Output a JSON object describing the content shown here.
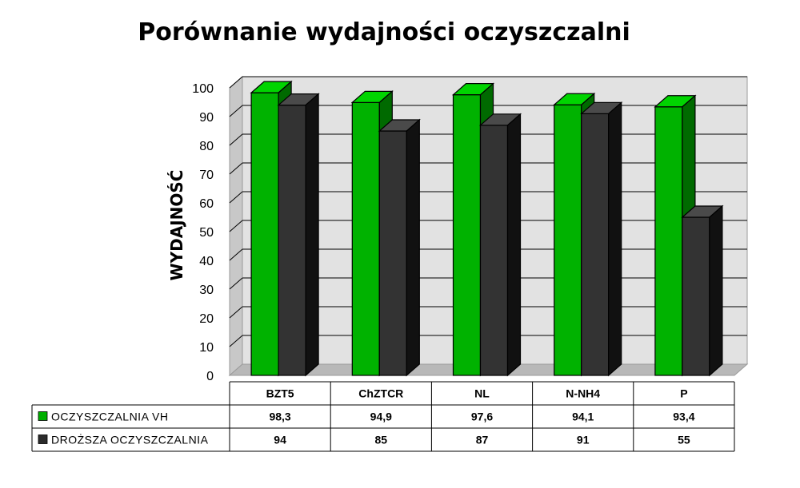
{
  "chart_data": {
    "type": "bar",
    "title": "Porównanie wydajności oczyszczalni",
    "ylabel": "WYDAJNOŚĆ",
    "xlabel": "",
    "ylim": [
      0,
      100
    ],
    "yticks": [
      0,
      10,
      20,
      30,
      40,
      50,
      60,
      70,
      80,
      90,
      100
    ],
    "grid": true,
    "legend": "data-table-left",
    "style": "3d-clustered",
    "categories": [
      "BZT5",
      "ChZTCR",
      "NL",
      "N-NH4",
      "P"
    ],
    "series": [
      {
        "name": "OCZYSZCZALNIA VH",
        "values": [
          98.3,
          94.9,
          97.6,
          94.1,
          93.4
        ],
        "labels": [
          "98,3",
          "94,9",
          "97,6",
          "94,1",
          "93,4"
        ],
        "color": "#00b000"
      },
      {
        "name": "DROŻSZA OCZYSZCZALNIA",
        "values": [
          94,
          85,
          87,
          91,
          55
        ],
        "labels": [
          "94",
          "85",
          "87",
          "91",
          "55"
        ],
        "color": "#2b2b2b"
      }
    ]
  }
}
